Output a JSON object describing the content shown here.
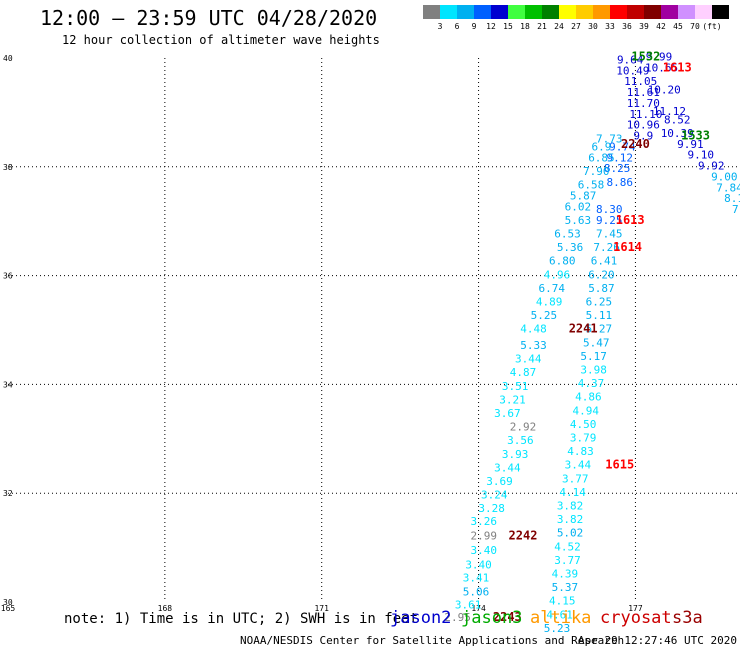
{
  "header": {
    "title": "12:00 – 23:59 UTC 04/28/2020",
    "subtitle": "12 hour collection of altimeter wave heights"
  },
  "legend": {
    "unit_label": "(ft)",
    "bins": [
      {
        "label": "",
        "color": "#808080"
      },
      {
        "label": "3",
        "color": "#00e5ff"
      },
      {
        "label": "6",
        "color": "#00b0f0"
      },
      {
        "label": "9",
        "color": "#0060ff"
      },
      {
        "label": "12",
        "color": "#0000d0"
      },
      {
        "label": "15",
        "color": "#40ff40"
      },
      {
        "label": "18",
        "color": "#00c000"
      },
      {
        "label": "21",
        "color": "#008000"
      },
      {
        "label": "24",
        "color": "#ffff00"
      },
      {
        "label": "27",
        "color": "#ffcc00"
      },
      {
        "label": "30",
        "color": "#ff9900"
      },
      {
        "label": "33",
        "color": "#ff0000"
      },
      {
        "label": "36",
        "color": "#c00000"
      },
      {
        "label": "39",
        "color": "#800000"
      },
      {
        "label": "42",
        "color": "#a000a0"
      },
      {
        "label": "45",
        "color": "#d090ff"
      },
      {
        "label": "70",
        "color": "#ffd0ff"
      },
      {
        "label": "",
        "color": "#000000"
      }
    ]
  },
  "chart_data": {
    "type": "scatter",
    "title": "12:00 – 23:59 UTC 04/28/2020",
    "xlim": [
      165,
      179
    ],
    "ylim": [
      30,
      40
    ],
    "x_ticks": [
      165,
      168,
      171,
      174,
      177
    ],
    "y_ticks": [
      30,
      32,
      34,
      36,
      38,
      40
    ],
    "x_tick_labels": [
      "165",
      "168",
      "171",
      "174",
      "177"
    ],
    "y_tick_labels": [
      "30",
      "32",
      "34",
      "36",
      "38",
      "40"
    ],
    "grid": true,
    "points": [
      {
        "x": 176.9,
        "y": 39.9,
        "v": "9.64",
        "c": "#0000d0"
      },
      {
        "x": 176.95,
        "y": 39.7,
        "v": "10.49",
        "c": "#0000d0"
      },
      {
        "x": 177.1,
        "y": 39.5,
        "v": "11.05",
        "c": "#0000d0"
      },
      {
        "x": 177.15,
        "y": 39.3,
        "v": "11.61",
        "c": "#0000d0"
      },
      {
        "x": 177.15,
        "y": 39.1,
        "v": "11.70",
        "c": "#0000d0"
      },
      {
        "x": 177.2,
        "y": 38.9,
        "v": "11.10",
        "c": "#0000d0"
      },
      {
        "x": 177.15,
        "y": 38.7,
        "v": "10.96",
        "c": "#0000d0"
      },
      {
        "x": 177.15,
        "y": 38.5,
        "v": "9.9",
        "c": "#0000d0"
      },
      {
        "x": 177.45,
        "y": 39.95,
        "v": "9.99",
        "c": "#0000d0"
      },
      {
        "x": 177.5,
        "y": 39.75,
        "v": "10.65",
        "c": "#0000d0"
      },
      {
        "x": 177.55,
        "y": 39.35,
        "v": "10.20",
        "c": "#0000d0"
      },
      {
        "x": 177.65,
        "y": 38.95,
        "v": "11.12",
        "c": "#0000d0"
      },
      {
        "x": 177.8,
        "y": 38.8,
        "v": "8.52",
        "c": "#0000d0"
      },
      {
        "x": 177.8,
        "y": 38.55,
        "v": "10.39",
        "c": "#0000d0"
      },
      {
        "x": 178.05,
        "y": 38.35,
        "v": "9.91",
        "c": "#0000d0"
      },
      {
        "x": 178.25,
        "y": 38.15,
        "v": "9.10",
        "c": "#0000d0"
      },
      {
        "x": 178.45,
        "y": 37.95,
        "v": "9.92",
        "c": "#0000d0"
      },
      {
        "x": 176.75,
        "y": 38.3,
        "v": "9.74",
        "c": "#0060ff"
      },
      {
        "x": 176.7,
        "y": 38.1,
        "v": "9.12",
        "c": "#0060ff"
      },
      {
        "x": 176.7,
        "y": 37.65,
        "v": "8.86",
        "c": "#0060ff"
      },
      {
        "x": 176.65,
        "y": 37.9,
        "v": "8.25",
        "c": "#0060ff"
      },
      {
        "x": 176.5,
        "y": 37.15,
        "v": "8.30",
        "c": "#0060ff"
      },
      {
        "x": 176.5,
        "y": 36.95,
        "v": "9.25",
        "c": "#0060ff"
      },
      {
        "x": 176.5,
        "y": 38.45,
        "v": "7.73",
        "c": "#00b0f0"
      },
      {
        "x": 176.35,
        "y": 38.3,
        "v": "6.9",
        "c": "#00b0f0"
      },
      {
        "x": 176.35,
        "y": 38.1,
        "v": "6.85",
        "c": "#00b0f0"
      },
      {
        "x": 176.25,
        "y": 37.85,
        "v": "7.90",
        "c": "#00b0f0"
      },
      {
        "x": 176.15,
        "y": 37.6,
        "v": "6.58",
        "c": "#00b0f0"
      },
      {
        "x": 176.0,
        "y": 37.4,
        "v": "5.87",
        "c": "#00b0f0"
      },
      {
        "x": 175.9,
        "y": 37.2,
        "v": "6.02",
        "c": "#00b0f0"
      },
      {
        "x": 175.9,
        "y": 36.95,
        "v": "5.63",
        "c": "#00b0f0"
      },
      {
        "x": 175.7,
        "y": 36.7,
        "v": "6.53",
        "c": "#00b0f0"
      },
      {
        "x": 175.75,
        "y": 36.45,
        "v": "5.36",
        "c": "#00b0f0"
      },
      {
        "x": 175.6,
        "y": 36.2,
        "v": "6.80",
        "c": "#00b0f0"
      },
      {
        "x": 175.5,
        "y": 35.95,
        "v": "4.96",
        "c": "#00e5ff"
      },
      {
        "x": 175.4,
        "y": 35.7,
        "v": "6.74",
        "c": "#00b0f0"
      },
      {
        "x": 175.35,
        "y": 35.45,
        "v": "4.89",
        "c": "#00e5ff"
      },
      {
        "x": 175.25,
        "y": 35.2,
        "v": "5.25",
        "c": "#00b0f0"
      },
      {
        "x": 175.05,
        "y": 34.95,
        "v": "4.48",
        "c": "#00e5ff"
      },
      {
        "x": 175.05,
        "y": 34.65,
        "v": "5.33",
        "c": "#00b0f0"
      },
      {
        "x": 174.95,
        "y": 34.4,
        "v": "3.44",
        "c": "#00e5ff"
      },
      {
        "x": 174.85,
        "y": 34.15,
        "v": "4.87",
        "c": "#00e5ff"
      },
      {
        "x": 174.7,
        "y": 33.9,
        "v": "3.51",
        "c": "#00e5ff"
      },
      {
        "x": 174.65,
        "y": 33.65,
        "v": "3.21",
        "c": "#00e5ff"
      },
      {
        "x": 174.55,
        "y": 33.4,
        "v": "3.67",
        "c": "#00e5ff"
      },
      {
        "x": 174.85,
        "y": 33.15,
        "v": "2.92",
        "c": "#808080"
      },
      {
        "x": 174.8,
        "y": 32.9,
        "v": "3.56",
        "c": "#00e5ff"
      },
      {
        "x": 174.7,
        "y": 32.65,
        "v": "3.93",
        "c": "#00e5ff"
      },
      {
        "x": 174.55,
        "y": 32.4,
        "v": "3.44",
        "c": "#00e5ff"
      },
      {
        "x": 174.4,
        "y": 32.15,
        "v": "3.69",
        "c": "#00e5ff"
      },
      {
        "x": 174.3,
        "y": 31.9,
        "v": "3.24",
        "c": "#00e5ff"
      },
      {
        "x": 174.25,
        "y": 31.65,
        "v": "3.28",
        "c": "#00e5ff"
      },
      {
        "x": 174.1,
        "y": 31.42,
        "v": "3.26",
        "c": "#00e5ff"
      },
      {
        "x": 174.1,
        "y": 31.15,
        "v": "2.99",
        "c": "#808080"
      },
      {
        "x": 174.1,
        "y": 30.88,
        "v": "3.40",
        "c": "#00e5ff"
      },
      {
        "x": 174.0,
        "y": 30.62,
        "v": "3.40",
        "c": "#00e5ff"
      },
      {
        "x": 173.95,
        "y": 30.38,
        "v": "3.41",
        "c": "#00e5ff"
      },
      {
        "x": 173.95,
        "y": 30.12,
        "v": "5.06",
        "c": "#00b0f0"
      },
      {
        "x": 173.8,
        "y": 29.88,
        "v": "3.61",
        "c": "#00e5ff"
      },
      {
        "x": 173.6,
        "y": 29.65,
        "v": "2.95",
        "c": "#808080"
      },
      {
        "x": 176.5,
        "y": 36.7,
        "v": "7.45",
        "c": "#00b0f0"
      },
      {
        "x": 176.45,
        "y": 36.45,
        "v": "7.26",
        "c": "#00b0f0"
      },
      {
        "x": 176.4,
        "y": 36.2,
        "v": "6.41",
        "c": "#00b0f0"
      },
      {
        "x": 176.35,
        "y": 35.95,
        "v": "6.20",
        "c": "#00b0f0"
      },
      {
        "x": 176.35,
        "y": 35.7,
        "v": "5.87",
        "c": "#00b0f0"
      },
      {
        "x": 176.3,
        "y": 35.45,
        "v": "6.25",
        "c": "#00b0f0"
      },
      {
        "x": 176.3,
        "y": 35.2,
        "v": "5.11",
        "c": "#00b0f0"
      },
      {
        "x": 176.3,
        "y": 34.95,
        "v": "5.27",
        "c": "#00b0f0"
      },
      {
        "x": 176.25,
        "y": 34.7,
        "v": "5.47",
        "c": "#00b0f0"
      },
      {
        "x": 176.2,
        "y": 34.45,
        "v": "5.17",
        "c": "#00b0f0"
      },
      {
        "x": 176.2,
        "y": 34.2,
        "v": "3.98",
        "c": "#00e5ff"
      },
      {
        "x": 176.15,
        "y": 33.95,
        "v": "4.37",
        "c": "#00e5ff"
      },
      {
        "x": 176.1,
        "y": 33.7,
        "v": "4.86",
        "c": "#00e5ff"
      },
      {
        "x": 176.05,
        "y": 33.45,
        "v": "4.94",
        "c": "#00e5ff"
      },
      {
        "x": 176.0,
        "y": 33.2,
        "v": "4.50",
        "c": "#00e5ff"
      },
      {
        "x": 176.0,
        "y": 32.95,
        "v": "3.79",
        "c": "#00e5ff"
      },
      {
        "x": 175.95,
        "y": 32.7,
        "v": "4.83",
        "c": "#00e5ff"
      },
      {
        "x": 175.9,
        "y": 32.45,
        "v": "3.44",
        "c": "#00e5ff"
      },
      {
        "x": 175.85,
        "y": 32.2,
        "v": "3.77",
        "c": "#00e5ff"
      },
      {
        "x": 175.8,
        "y": 31.95,
        "v": "4.14",
        "c": "#00e5ff"
      },
      {
        "x": 175.75,
        "y": 31.7,
        "v": "3.82",
        "c": "#00e5ff"
      },
      {
        "x": 175.75,
        "y": 31.45,
        "v": "3.82",
        "c": "#00e5ff"
      },
      {
        "x": 175.75,
        "y": 31.2,
        "v": "5.02",
        "c": "#00b0f0"
      },
      {
        "x": 175.7,
        "y": 30.95,
        "v": "4.52",
        "c": "#00e5ff"
      },
      {
        "x": 175.7,
        "y": 30.7,
        "v": "3.77",
        "c": "#00e5ff"
      },
      {
        "x": 175.65,
        "y": 30.45,
        "v": "4.39",
        "c": "#00e5ff"
      },
      {
        "x": 175.65,
        "y": 30.2,
        "v": "5.37",
        "c": "#00b0f0"
      },
      {
        "x": 175.6,
        "y": 29.95,
        "v": "4.15",
        "c": "#00e5ff"
      },
      {
        "x": 175.55,
        "y": 29.7,
        "v": "4.61",
        "c": "#00e5ff"
      },
      {
        "x": 175.5,
        "y": 29.45,
        "v": "5.23",
        "c": "#00b0f0"
      },
      {
        "x": 178.7,
        "y": 37.75,
        "v": "9.00",
        "c": "#00b0f0"
      },
      {
        "x": 178.8,
        "y": 37.55,
        "v": "7.84",
        "c": "#00b0f0"
      },
      {
        "x": 178.95,
        "y": 37.35,
        "v": "8.17",
        "c": "#00b0f0"
      },
      {
        "x": 179.1,
        "y": 37.15,
        "v": "7.81",
        "c": "#00b0f0"
      },
      {
        "x": 179.25,
        "y": 36.95,
        "v": "8.37",
        "c": "#00b0f0"
      },
      {
        "x": 179.35,
        "y": 36.75,
        "v": "8.18",
        "c": "#00b0f0"
      },
      {
        "x": 179.45,
        "y": 36.55,
        "v": "7.93",
        "c": "#00b0f0"
      },
      {
        "x": 179.55,
        "y": 36.35,
        "v": "7.88",
        "c": "#00b0f0"
      },
      {
        "x": 179.65,
        "y": 36.15,
        "v": "8.00",
        "c": "#00b0f0"
      }
    ],
    "times": [
      {
        "x": 177.2,
        "y": 39.95,
        "v": "1532",
        "c": "#008000"
      },
      {
        "x": 177.8,
        "y": 39.75,
        "v": "1613",
        "c": "#ff0000"
      },
      {
        "x": 178.15,
        "y": 38.5,
        "v": "1533",
        "c": "#008000"
      },
      {
        "x": 177.0,
        "y": 38.35,
        "v": "2240",
        "c": "#800000"
      },
      {
        "x": 176.9,
        "y": 36.95,
        "v": "1613",
        "c": "#ff0000"
      },
      {
        "x": 176.85,
        "y": 36.45,
        "v": "1614",
        "c": "#ff0000"
      },
      {
        "x": 176.0,
        "y": 34.95,
        "v": "2241",
        "c": "#800000"
      },
      {
        "x": 176.7,
        "y": 32.45,
        "v": "1615",
        "c": "#ff0000"
      },
      {
        "x": 174.85,
        "y": 31.15,
        "v": "2242",
        "c": "#800000"
      },
      {
        "x": 174.55,
        "y": 29.65,
        "v": "2243",
        "c": "#800000"
      }
    ]
  },
  "footer": {
    "note": "note: 1) Time is in UTC; 2) SWH is in feet",
    "missions": [
      {
        "label": "jason2",
        "color": "#0000cc"
      },
      {
        "label": "jason3",
        "color": "#00aa00"
      },
      {
        "label": "altika",
        "color": "#ff9900"
      },
      {
        "label": "cryosat",
        "color": "#cc0000"
      },
      {
        "label": "s3a",
        "color": "#990000"
      }
    ],
    "credit": "NOAA/NESDIS Center for Satellite Applications and Research",
    "timestamp": "Apr 29 12:27:46 UTC 2020"
  }
}
